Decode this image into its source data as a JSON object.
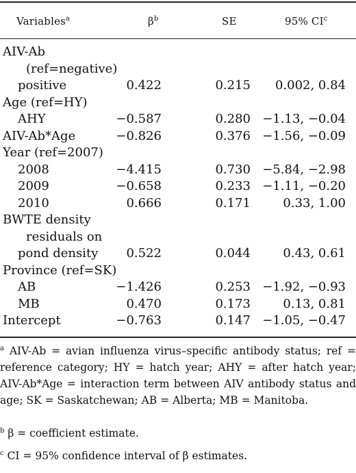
{
  "header": {
    "variables": "Variables",
    "variables_sup": "a",
    "beta": "β",
    "beta_sup": "b",
    "se": "SE",
    "ci": "95% CI",
    "ci_sup": "c"
  },
  "rows": [
    {
      "label": "AIV-Ab",
      "indent": 0,
      "beta": "",
      "se": "",
      "ci": ""
    },
    {
      "label": "(ref=negative)",
      "indent": 2,
      "beta": "",
      "se": "",
      "ci": ""
    },
    {
      "label": "positive",
      "indent": 1,
      "beta": "0.422",
      "se": "0.215",
      "ci": "0.002, 0.84"
    },
    {
      "label": "Age (ref=HY)",
      "indent": 0,
      "beta": "",
      "se": "",
      "ci": ""
    },
    {
      "label": "AHY",
      "indent": 1,
      "beta": "−0.587",
      "se": "0.280",
      "ci": "−1.13, −0.04"
    },
    {
      "label": "AIV-Ab*Age",
      "indent": 0,
      "beta": "−0.826",
      "se": "0.376",
      "ci": "−1.56, −0.09"
    },
    {
      "label": "Year (ref=2007)",
      "indent": 0,
      "beta": "",
      "se": "",
      "ci": ""
    },
    {
      "label": "2008",
      "indent": 1,
      "beta": "−4.415",
      "se": "0.730",
      "ci": "−5.84, −2.98"
    },
    {
      "label": "2009",
      "indent": 1,
      "beta": "−0.658",
      "se": "0.233",
      "ci": "−1.11, −0.20"
    },
    {
      "label": "2010",
      "indent": 1,
      "beta": "0.666",
      "se": "0.171",
      "ci": "0.33, 1.00"
    },
    {
      "label": "BWTE density",
      "indent": 0,
      "beta": "",
      "se": "",
      "ci": ""
    },
    {
      "label": "residuals on",
      "indent": 2,
      "beta": "",
      "se": "",
      "ci": ""
    },
    {
      "label": "pond density",
      "indent": 1,
      "beta": "0.522",
      "se": "0.044",
      "ci": "0.43, 0.61"
    },
    {
      "label": "Province (ref=SK)",
      "indent": 0,
      "beta": "",
      "se": "",
      "ci": ""
    },
    {
      "label": "AB",
      "indent": 1,
      "beta": "−1.426",
      "se": "0.253",
      "ci": "−1.92, −0.93"
    },
    {
      "label": "MB",
      "indent": 1,
      "beta": "0.470",
      "se": "0.173",
      "ci": "0.13, 0.81"
    },
    {
      "label": "Intercept",
      "indent": 0,
      "beta": "−0.763",
      "se": "0.147",
      "ci": "−1.05, −0.47"
    }
  ],
  "footnotes": {
    "a_mark": "a",
    "a_text": "AIV-Ab = avian influenza virus–specific antibody status; ref = reference category; HY = hatch year; AHY = after hatch year; AIV-Ab*Age = interaction term between AIV antibody status and age; SK = Saskatchewan; AB = Alberta; MB = Manitoba.",
    "b_mark": "b",
    "b_text": "β = coefficient estimate.",
    "c_mark": "c",
    "c_text": "CI = 95% confidence interval of β estimates."
  }
}
